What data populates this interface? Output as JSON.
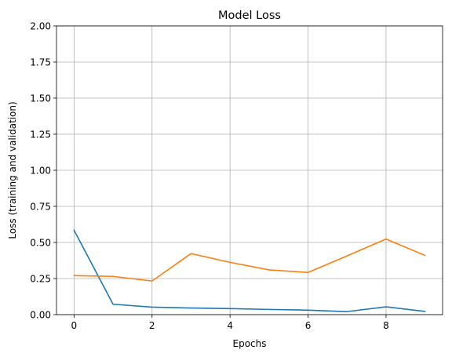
{
  "chart_data": {
    "type": "line",
    "title": "Model Loss",
    "xlabel": "Epochs",
    "ylabel": "Loss (training and validation)",
    "xlim": [
      -0.45,
      9.45
    ],
    "ylim": [
      0,
      2.0
    ],
    "xticks": [
      0,
      2,
      4,
      6,
      8
    ],
    "yticks": [
      0.0,
      0.25,
      0.5,
      0.75,
      1.0,
      1.25,
      1.5,
      1.75,
      2.0
    ],
    "ytick_labels": [
      "0.00",
      "0.25",
      "0.50",
      "0.75",
      "1.00",
      "1.25",
      "1.50",
      "1.75",
      "2.00"
    ],
    "grid": true,
    "x": [
      0,
      1,
      2,
      3,
      4,
      5,
      6,
      7,
      8,
      9
    ],
    "series": [
      {
        "color": "#1f77b4",
        "values": [
          0.585,
          0.072,
          0.052,
          0.046,
          0.042,
          0.036,
          0.031,
          0.021,
          0.054,
          0.022
        ]
      },
      {
        "color": "#ff7f0e",
        "values": [
          0.27,
          0.265,
          0.233,
          0.423,
          0.362,
          0.31,
          0.292,
          0.407,
          0.524,
          0.41
        ]
      }
    ]
  }
}
